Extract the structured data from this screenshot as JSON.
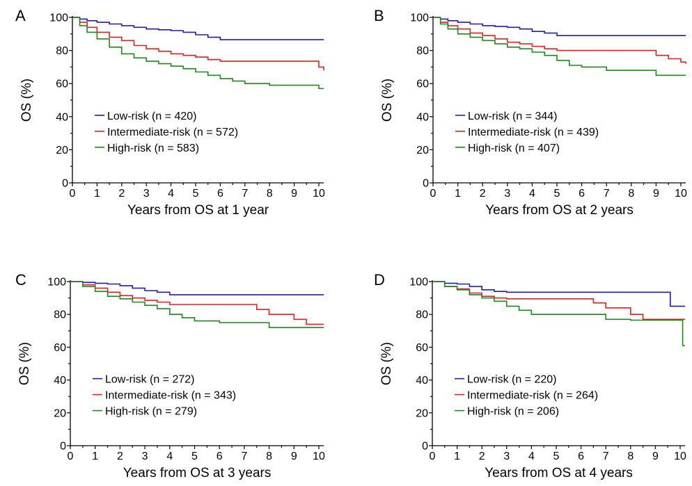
{
  "colors": {
    "low": "#1c1cb8",
    "intermediate": "#ee1c1c",
    "high": "#1a8a1a"
  },
  "chart_data": [
    {
      "type": "line",
      "panel": "A",
      "xlabel": "Years from OS at 1 year",
      "ylabel": "OS (%)",
      "xlim": [
        0,
        10.2
      ],
      "ylim": [
        0,
        100
      ],
      "xticks": [
        "0",
        "1",
        "2",
        "3",
        "4",
        "5",
        "6",
        "7",
        "8",
        "9",
        "10"
      ],
      "yticks": [
        "0",
        "20",
        "40",
        "60",
        "80",
        "100"
      ],
      "legend_position": "lower-left",
      "series": [
        {
          "name": "Low-risk (n = 420)",
          "color_key": "low",
          "x": [
            0,
            0.3,
            0.6,
            1,
            1.5,
            2,
            2.5,
            3,
            3.5,
            4,
            4.5,
            5,
            5.5,
            6,
            6.5,
            7,
            8,
            9,
            10.2
          ],
          "y": [
            100,
            99,
            98,
            97,
            96,
            95,
            94,
            93,
            92.5,
            92,
            91,
            89.5,
            88,
            86.5,
            86.5,
            86.5,
            86.5,
            86.5,
            86.5
          ]
        },
        {
          "name": "Intermediate-risk (n = 572)",
          "color_key": "intermediate",
          "x": [
            0,
            0.3,
            0.6,
            1,
            1.5,
            2,
            2.5,
            3,
            3.5,
            4,
            4.5,
            5,
            5.5,
            6,
            7,
            8,
            9,
            10,
            10.2
          ],
          "y": [
            100,
            97,
            94,
            91,
            88,
            86,
            83,
            81,
            79.5,
            78,
            77,
            76,
            74.5,
            73.5,
            73.5,
            73.5,
            73.5,
            70,
            68
          ]
        },
        {
          "name": "High-risk (n = 583)",
          "color_key": "high",
          "x": [
            0,
            0.3,
            0.6,
            1,
            1.5,
            2,
            2.5,
            3,
            3.5,
            4,
            4.5,
            5,
            5.5,
            6,
            6.5,
            7,
            8,
            9,
            10,
            10.2
          ],
          "y": [
            100,
            95,
            91,
            87,
            82,
            78,
            75.5,
            73.5,
            72,
            70.5,
            69,
            67,
            65,
            63,
            61.5,
            60,
            59,
            59,
            57,
            57
          ]
        }
      ]
    },
    {
      "type": "line",
      "panel": "B",
      "xlabel": "Years from OS at 2 years",
      "ylabel": "OS (%)",
      "xlim": [
        0,
        10.2
      ],
      "ylim": [
        0,
        100
      ],
      "xticks": [
        "0",
        "1",
        "2",
        "3",
        "4",
        "5",
        "6",
        "7",
        "8",
        "9",
        "10"
      ],
      "yticks": [
        "0",
        "20",
        "40",
        "60",
        "80",
        "100"
      ],
      "legend_position": "lower-left",
      "series": [
        {
          "name": "Low-risk (n = 344)",
          "color_key": "low",
          "x": [
            0,
            0.3,
            0.6,
            1,
            1.5,
            2,
            2.5,
            3,
            3.5,
            4,
            4.5,
            5,
            6,
            7,
            8,
            9,
            10.2
          ],
          "y": [
            100,
            99,
            98,
            97,
            96,
            95,
            94.5,
            94,
            93,
            91.5,
            90.5,
            89,
            89,
            89,
            89,
            89,
            89
          ]
        },
        {
          "name": "Intermediate-risk (n = 439)",
          "color_key": "intermediate",
          "x": [
            0,
            0.3,
            0.6,
            1,
            1.5,
            2,
            2.5,
            3,
            3.5,
            4,
            4.5,
            5,
            6,
            7,
            8,
            9,
            9.5,
            10,
            10.2
          ],
          "y": [
            100,
            97,
            95,
            93,
            90.5,
            89,
            87,
            85,
            84,
            82.5,
            81,
            80,
            80,
            80,
            80,
            77,
            75,
            73,
            72
          ]
        },
        {
          "name": "High-risk (n = 407)",
          "color_key": "high",
          "x": [
            0,
            0.3,
            0.6,
            1,
            1.5,
            2,
            2.5,
            3,
            3.5,
            4,
            4.5,
            5,
            5.5,
            6,
            7,
            8,
            9,
            10,
            10.2
          ],
          "y": [
            100,
            96,
            93,
            90,
            88,
            86,
            84,
            82,
            81,
            79,
            77,
            74,
            71,
            70,
            68,
            68,
            65,
            65,
            65
          ]
        }
      ]
    },
    {
      "type": "line",
      "panel": "C",
      "xlabel": "Years from OS at 3 years",
      "ylabel": "OS (%)",
      "xlim": [
        0,
        10.2
      ],
      "ylim": [
        0,
        100
      ],
      "xticks": [
        "0",
        "1",
        "2",
        "3",
        "4",
        "5",
        "6",
        "7",
        "8",
        "9",
        "10"
      ],
      "yticks": [
        "0",
        "20",
        "40",
        "60",
        "80",
        "100"
      ],
      "legend_position": "lower-left",
      "series": [
        {
          "name": "Low-risk (n = 272)",
          "color_key": "low",
          "x": [
            0,
            0.5,
            1,
            1.5,
            2,
            2.5,
            3,
            3.5,
            4,
            5,
            6,
            7,
            8,
            9,
            10.2
          ],
          "y": [
            100,
            99.5,
            99,
            98.5,
            97.5,
            96,
            94.5,
            93.5,
            92,
            92,
            92,
            92,
            92,
            92,
            92
          ]
        },
        {
          "name": "Intermediate-risk (n = 343)",
          "color_key": "intermediate",
          "x": [
            0,
            0.5,
            1,
            1.5,
            2,
            2.5,
            3,
            3.5,
            4,
            5,
            6,
            7,
            7.5,
            8,
            9,
            9.5,
            10.2
          ],
          "y": [
            100,
            98,
            96,
            93.5,
            91.5,
            90,
            88.5,
            87.5,
            86,
            86,
            86,
            86,
            83,
            80,
            77,
            74,
            74
          ]
        },
        {
          "name": "High-risk (n = 279)",
          "color_key": "high",
          "x": [
            0,
            0.5,
            1,
            1.5,
            2,
            2.5,
            3,
            3.5,
            4,
            4.5,
            5,
            6,
            7,
            7.5,
            8,
            9,
            10.2
          ],
          "y": [
            100,
            97,
            94,
            91,
            89.5,
            87.5,
            85.5,
            83.5,
            80,
            78,
            76,
            75,
            75,
            75,
            72,
            72,
            72
          ]
        }
      ]
    },
    {
      "type": "line",
      "panel": "D",
      "xlabel": "Years from OS at 4 years",
      "ylabel": "OS (%)",
      "xlim": [
        0,
        10.2
      ],
      "ylim": [
        0,
        100
      ],
      "xticks": [
        "0",
        "1",
        "2",
        "3",
        "4",
        "5",
        "6",
        "7",
        "8",
        "9",
        "10"
      ],
      "yticks": [
        "0",
        "20",
        "40",
        "60",
        "80",
        "100"
      ],
      "legend_position": "lower-left",
      "series": [
        {
          "name": "Low-risk (n = 220)",
          "color_key": "low",
          "x": [
            0,
            0.5,
            1,
            1.5,
            2,
            2.5,
            3,
            4,
            5,
            6,
            7,
            8,
            9,
            9.5,
            9.6,
            10.2
          ],
          "y": [
            100,
            99,
            98.5,
            97,
            95,
            94,
            93.5,
            93.5,
            93.5,
            93.5,
            93.5,
            93.5,
            93.5,
            93.5,
            85,
            85
          ]
        },
        {
          "name": "Intermediate-risk (n = 264)",
          "color_key": "intermediate",
          "x": [
            0,
            0.5,
            1,
            1.5,
            2,
            2.5,
            3,
            4,
            5,
            6,
            6.5,
            7,
            7.5,
            8,
            8.5,
            9,
            10,
            10.2
          ],
          "y": [
            100,
            97,
            95.5,
            93,
            91,
            90,
            89.5,
            89.5,
            89.5,
            89.5,
            87,
            84,
            84,
            80,
            77,
            77,
            77,
            77
          ]
        },
        {
          "name": "High-risk (n = 206)",
          "color_key": "high",
          "x": [
            0,
            0.5,
            1,
            1.5,
            2,
            2.5,
            3,
            3.5,
            4,
            5,
            6,
            6.5,
            7,
            8,
            9,
            10,
            10.1,
            10.2
          ],
          "y": [
            100,
            97,
            95,
            92,
            90,
            88,
            85,
            82.5,
            80,
            80,
            80,
            80,
            77,
            76.5,
            76.5,
            76.5,
            61,
            61
          ]
        }
      ]
    }
  ]
}
